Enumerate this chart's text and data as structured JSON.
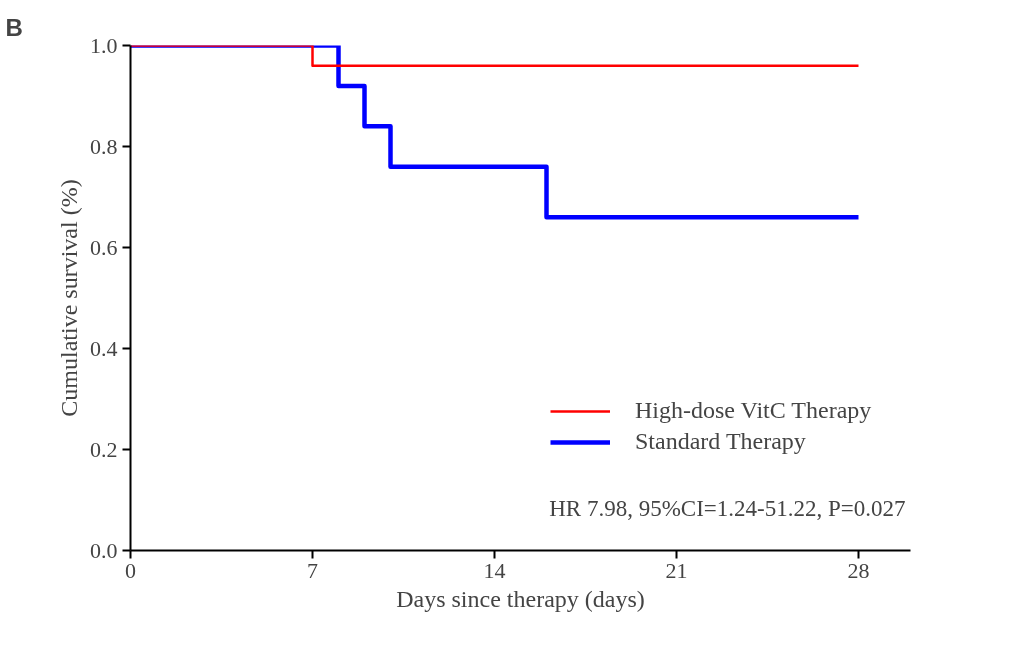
{
  "chart_data": {
    "type": "step",
    "xlabel": "Days since therapy (days)",
    "ylabel": "Cumulative survival (%)",
    "xlim": [
      0,
      30
    ],
    "ylim": [
      0,
      1.0
    ],
    "xticks": [
      0,
      7,
      14,
      21,
      28
    ],
    "yticks": [
      {
        "value": 0,
        "label": "0.0"
      },
      {
        "value": 0.2,
        "label": "0.2"
      },
      {
        "value": 0.4,
        "label": "0.4"
      },
      {
        "value": 0.6,
        "label": "0.6"
      },
      {
        "value": 0.8,
        "label": "0.8"
      },
      {
        "value": 1.0,
        "label": "1.0"
      }
    ],
    "grid": false,
    "legend": "bottom right",
    "line_style": "solid",
    "marker": "none",
    "annotations": [
      "B",
      "HR 7.98, 95%CI=1.24-51.22, P=0.027"
    ],
    "series": [
      {
        "name": "High-dose VitC Therapy",
        "color": "#ff0000",
        "x": [
          0,
          7,
          28
        ],
        "values": [
          1.0,
          0.96,
          0.96
        ]
      },
      {
        "name": "Standard Therapy",
        "color": "#0000ff",
        "x": [
          0,
          8,
          9,
          10,
          16,
          28
        ],
        "values": [
          1.0,
          0.92,
          0.84,
          0.76,
          0.66,
          0.66
        ]
      }
    ]
  }
}
